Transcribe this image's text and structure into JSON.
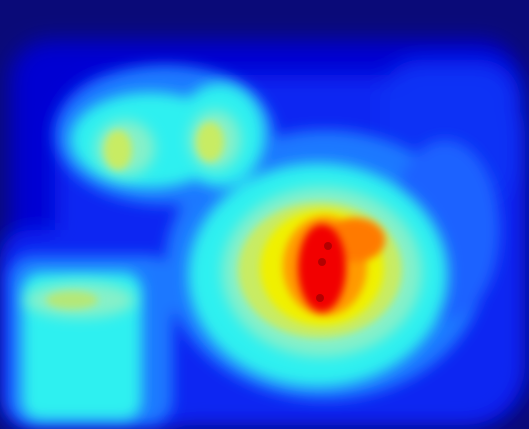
{
  "image": {
    "kind": "heatmap",
    "colormap": "jet",
    "palette": {
      "background_navy": "#0a0a78",
      "deep_blue": "#0000d2",
      "blue": "#0b25f2",
      "light_blue": "#1e78ff",
      "cyan": "#2ef0f0",
      "pale_cyan": "#86f0c8",
      "yellow_green": "#c8ec64",
      "yellow": "#f0f000",
      "orange": "#ff7a00",
      "red": "#f20000",
      "dark_red": "#b40000"
    },
    "hotspots": [
      {
        "name": "center-peak",
        "level": "high"
      },
      {
        "name": "upper-left-pair",
        "level": "medium"
      },
      {
        "name": "lower-left-block",
        "level": "medium-low"
      }
    ]
  }
}
